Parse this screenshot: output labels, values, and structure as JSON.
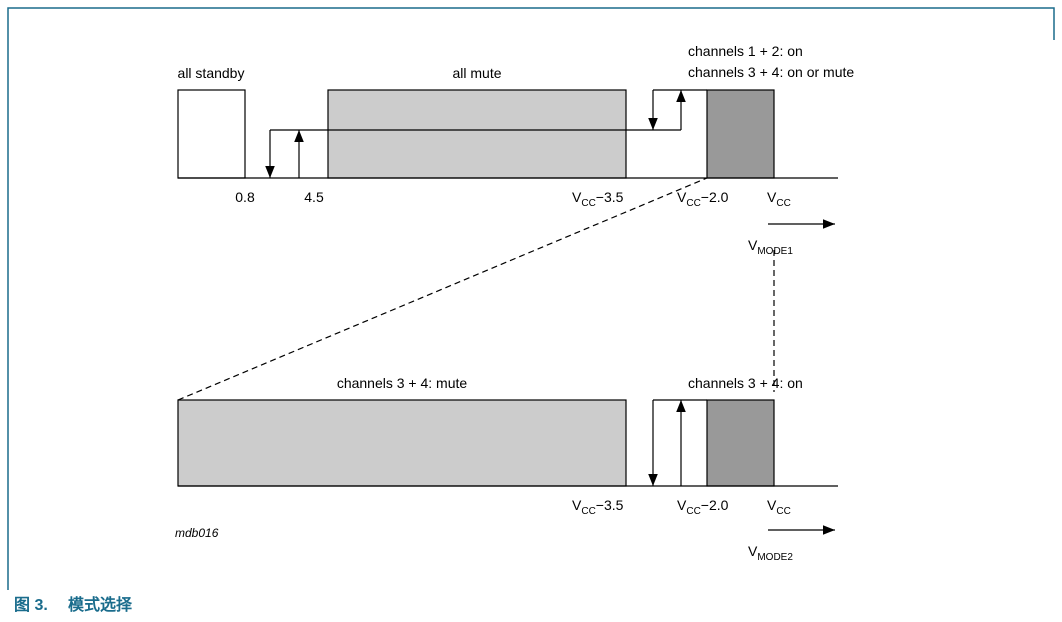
{
  "top": {
    "standby": "all standby",
    "mute": "all mute",
    "on_line1": "channels 1 + 2: on",
    "on_line2": "channels 3 + 4: on or mute",
    "ticks": [
      "0.8",
      "4.5",
      {
        "v": "V",
        "sub": "CC",
        "rest": "−3.5"
      },
      {
        "v": "V",
        "sub": "CC",
        "rest": "−2.0"
      },
      {
        "v": "V",
        "sub": "CC"
      }
    ],
    "axis": {
      "v": "V",
      "sub": "MODE1"
    }
  },
  "bottom": {
    "mute": "channels 3 + 4: mute",
    "on": "channels 3 + 4: on",
    "ticks": [
      {
        "v": "V",
        "sub": "CC",
        "rest": "−3.5"
      },
      {
        "v": "V",
        "sub": "CC",
        "rest": "−2.0"
      },
      {
        "v": "V",
        "sub": "CC"
      }
    ],
    "axis": {
      "v": "V",
      "sub": "MODE2"
    }
  },
  "code": "mdb016",
  "caption": {
    "number": "图 3.",
    "title": "模式选择"
  }
}
